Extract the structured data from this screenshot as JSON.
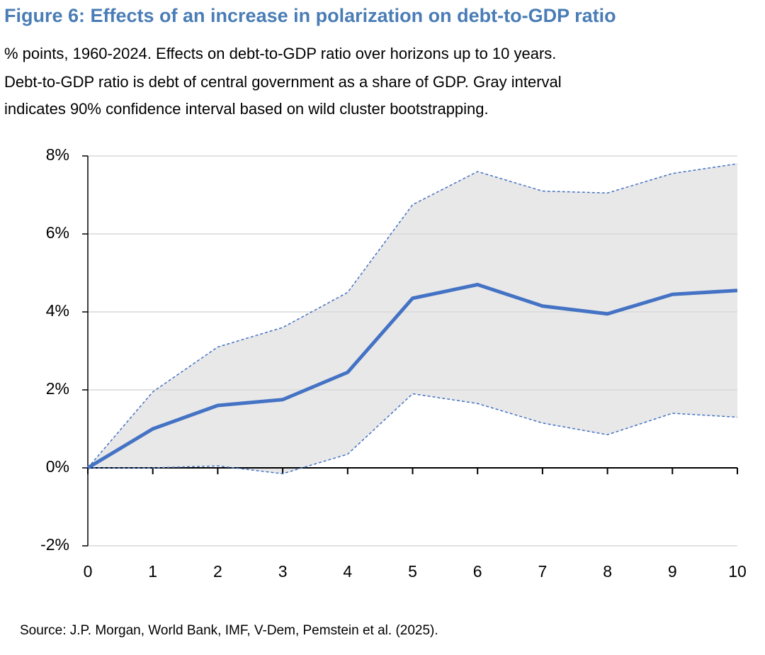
{
  "chart_data": {
    "type": "line",
    "title": "Figure 6: Effects of an increase in polarization on debt-to-GDP ratio",
    "subtitle": [
      "% points, 1960-2024. Effects on debt-to-GDP ratio over horizons up to 10 years.",
      "Debt-to-GDP ratio is debt of central government as a share of GDP. Gray interval",
      "indicates 90% confidence interval based on wild cluster bootstrapping."
    ],
    "source": "Source: J.P. Morgan, World Bank, IMF, V-Dem, Pemstein et al. (2025).",
    "x": [
      0,
      1,
      2,
      3,
      4,
      5,
      6,
      7,
      8,
      9,
      10
    ],
    "series": [
      {
        "color": "#4472c4",
        "values": [
          0,
          1.0,
          1.6,
          1.75,
          2.45,
          4.35,
          4.7,
          4.15,
          3.95,
          4.45,
          4.55
        ]
      }
    ],
    "band": {
      "fill": "#e8e8e8",
      "color": "#4472c4",
      "upper": [
        0,
        1.95,
        3.1,
        3.6,
        4.5,
        6.75,
        7.6,
        7.1,
        7.05,
        7.55,
        7.8
      ],
      "lower": [
        0,
        0,
        0.05,
        -0.15,
        0.35,
        1.9,
        1.65,
        1.15,
        0.85,
        1.4,
        1.3
      ]
    },
    "xlim": [
      0,
      10
    ],
    "xticks": [
      0,
      1,
      2,
      3,
      4,
      5,
      6,
      7,
      8,
      9,
      10
    ],
    "ylim": [
      -2,
      8
    ],
    "yticks": [
      {
        "value": -2,
        "label": "-2%"
      },
      {
        "value": 0,
        "label": "0%"
      },
      {
        "value": 2,
        "label": "2%"
      },
      {
        "value": 4,
        "label": "4%"
      },
      {
        "value": 6,
        "label": "6%"
      },
      {
        "value": 8,
        "label": "8%"
      }
    ],
    "grid": true
  }
}
